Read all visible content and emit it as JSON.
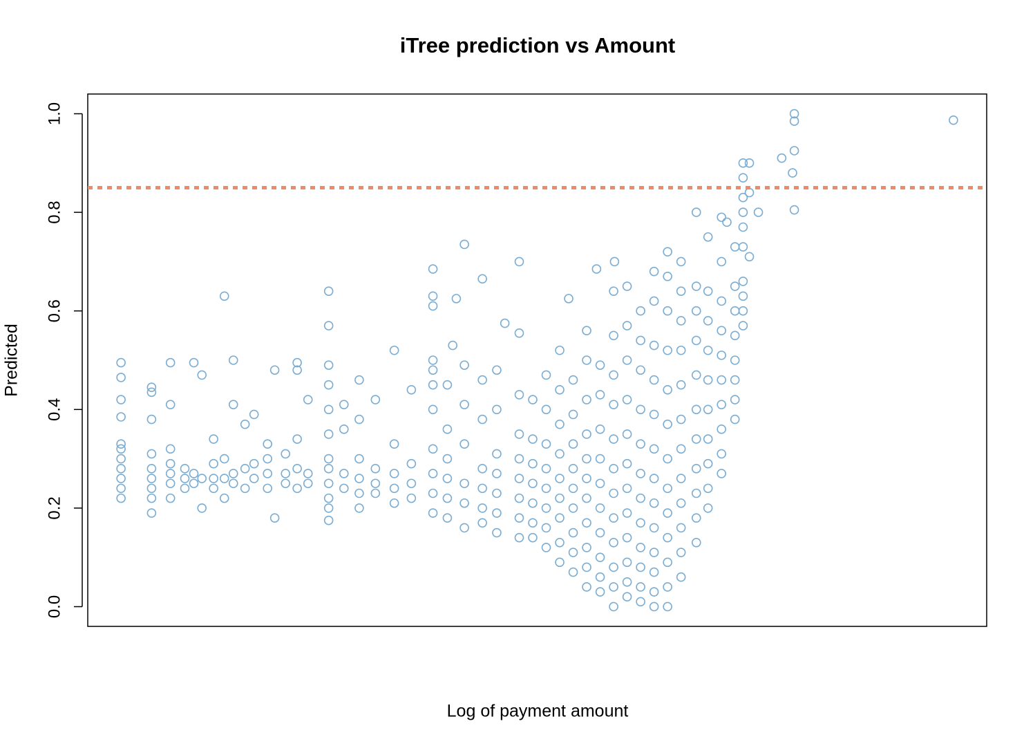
{
  "chart_data": {
    "type": "scatter",
    "title": "iTree prediction vs Amount",
    "x_label": "Log of payment amount",
    "y_label": "Predicted",
    "color": "#7badd3",
    "xlim": [
      0,
      100
    ],
    "ylim": [
      -0.04,
      1.04
    ],
    "yticks": [
      {
        "value": 0,
        "label": "0.0"
      },
      0.2,
      0.4,
      0.6,
      0.8,
      {
        "value": 1,
        "label": "1.0"
      }
    ],
    "reference_line": {
      "y": 0.85,
      "color": "#ef8a62"
    },
    "x": [
      3.7,
      3.7,
      3.7,
      3.7,
      3.7,
      3.7,
      3.7,
      3.7,
      3.7,
      3.7,
      3.7,
      7.1,
      7.1,
      7.1,
      7.1,
      7.1,
      7.1,
      7.1,
      7.1,
      7.1,
      9.2,
      9.2,
      9.2,
      9.2,
      9.2,
      9.2,
      9.2,
      10.8,
      10.8,
      10.8,
      11.8,
      11.8,
      11.8,
      12.7,
      12.7,
      12.7,
      14,
      14,
      14,
      14,
      15.2,
      15.2,
      15.2,
      15.2,
      16.2,
      16.2,
      16.2,
      16.2,
      17.5,
      17.5,
      17.5,
      18.5,
      18.5,
      18.5,
      20,
      20,
      20,
      20,
      20.8,
      20.8,
      22,
      22,
      22,
      23.3,
      23.3,
      23.3,
      23.3,
      23.3,
      24.5,
      24.5,
      24.5,
      26.8,
      26.8,
      26.8,
      26.8,
      26.8,
      26.8,
      26.8,
      26.8,
      26.8,
      26.8,
      26.8,
      26.8,
      28.5,
      28.5,
      28.5,
      28.5,
      30.2,
      30.2,
      30.2,
      30.2,
      30.2,
      30.2,
      32,
      32,
      32,
      32,
      34.1,
      34.1,
      34.1,
      34.1,
      34.1,
      36,
      36,
      36,
      36,
      38.4,
      38.4,
      38.4,
      38.4,
      38.4,
      38.4,
      38.4,
      38.4,
      38.4,
      38.4,
      38.4,
      40,
      40,
      40,
      40,
      40,
      40,
      40.6,
      41,
      41.9,
      41.9,
      41.9,
      41.9,
      41.9,
      41.9,
      41.9,
      43.9,
      43.9,
      43.9,
      43.9,
      43.9,
      43.9,
      43.9,
      45.5,
      45.5,
      45.5,
      45.5,
      45.5,
      45.5,
      45.5,
      46.4,
      48,
      48,
      48,
      48,
      48,
      48,
      48,
      48,
      48,
      49.5,
      49.5,
      49.5,
      49.5,
      49.5,
      49.5,
      49.5,
      51,
      51,
      51,
      51,
      51,
      51,
      51,
      51,
      52.5,
      52.5,
      52.5,
      52.5,
      52.5,
      52.5,
      52.5,
      52.5,
      52.5,
      53.5,
      54,
      54,
      54,
      54,
      54,
      54,
      54,
      54,
      54,
      55.5,
      55.5,
      55.5,
      55.5,
      55.5,
      55.5,
      55.5,
      55.5,
      55.5,
      55.5,
      55.5,
      56.6,
      57,
      57,
      57,
      57,
      57,
      57,
      57,
      57,
      57,
      57,
      58.5,
      58.5,
      58.5,
      58.5,
      58.5,
      58.5,
      58.5,
      58.5,
      58.5,
      58.5,
      58.5,
      58.5,
      58.6,
      60,
      60,
      60,
      60,
      60,
      60,
      60,
      60,
      60,
      60,
      60,
      60,
      61.5,
      61.5,
      61.5,
      61.5,
      61.5,
      61.5,
      61.5,
      61.5,
      61.5,
      61.5,
      61.5,
      61.5,
      63,
      63,
      63,
      63,
      63,
      63,
      63,
      63,
      63,
      63,
      63,
      63,
      63,
      64.5,
      64.5,
      64.5,
      64.5,
      64.5,
      64.5,
      64.5,
      64.5,
      64.5,
      64.5,
      64.5,
      64.5,
      64.5,
      66,
      66,
      66,
      66,
      66,
      66,
      66,
      66,
      66,
      66,
      66,
      66,
      67.7,
      67.7,
      67.7,
      67.7,
      67.7,
      67.7,
      67.7,
      67.7,
      67.7,
      67.7,
      67.7,
      69,
      69,
      69,
      69,
      69,
      69,
      69,
      69,
      69,
      69,
      70.5,
      70.5,
      70.5,
      70.5,
      70.5,
      70.5,
      70.5,
      70.5,
      70.5,
      70.5,
      71.1,
      72,
      72,
      72,
      72,
      72,
      72,
      72,
      72,
      72.9,
      72.9,
      72.9,
      72.9,
      72.9,
      72.9,
      72.9,
      72.9,
      72.9,
      72.9,
      73.6,
      73.6,
      73.6,
      74.6,
      77.2,
      78.4,
      78.6,
      78.6,
      78.6,
      78.6,
      96.3
    ],
    "values": [
      0.22,
      0.24,
      0.26,
      0.28,
      0.3,
      0.32,
      0.33,
      0.385,
      0.42,
      0.465,
      0.495,
      0.19,
      0.22,
      0.24,
      0.26,
      0.28,
      0.31,
      0.38,
      0.435,
      0.445,
      0.22,
      0.25,
      0.27,
      0.29,
      0.32,
      0.41,
      0.495,
      0.24,
      0.26,
      0.28,
      0.25,
      0.27,
      0.495,
      0.2,
      0.26,
      0.47,
      0.24,
      0.26,
      0.29,
      0.34,
      0.22,
      0.26,
      0.3,
      0.63,
      0.25,
      0.27,
      0.5,
      0.41,
      0.24,
      0.28,
      0.37,
      0.26,
      0.29,
      0.39,
      0.24,
      0.27,
      0.3,
      0.33,
      0.18,
      0.48,
      0.25,
      0.27,
      0.31,
      0.24,
      0.28,
      0.34,
      0.48,
      0.495,
      0.25,
      0.27,
      0.42,
      0.175,
      0.2,
      0.22,
      0.25,
      0.28,
      0.3,
      0.35,
      0.4,
      0.45,
      0.49,
      0.57,
      0.64,
      0.24,
      0.27,
      0.36,
      0.41,
      0.2,
      0.23,
      0.26,
      0.3,
      0.38,
      0.46,
      0.23,
      0.25,
      0.28,
      0.42,
      0.21,
      0.24,
      0.27,
      0.33,
      0.52,
      0.22,
      0.25,
      0.29,
      0.44,
      0.19,
      0.23,
      0.27,
      0.32,
      0.4,
      0.45,
      0.48,
      0.5,
      0.61,
      0.63,
      0.685,
      0.18,
      0.22,
      0.26,
      0.3,
      0.36,
      0.45,
      0.53,
      0.625,
      0.16,
      0.21,
      0.25,
      0.33,
      0.41,
      0.49,
      0.735,
      0.17,
      0.2,
      0.24,
      0.28,
      0.38,
      0.46,
      0.665,
      0.15,
      0.19,
      0.23,
      0.27,
      0.31,
      0.4,
      0.48,
      0.575,
      0.14,
      0.18,
      0.22,
      0.26,
      0.3,
      0.35,
      0.43,
      0.555,
      0.7,
      0.14,
      0.17,
      0.21,
      0.25,
      0.29,
      0.34,
      0.42,
      0.12,
      0.16,
      0.2,
      0.24,
      0.28,
      0.33,
      0.4,
      0.47,
      0.09,
      0.13,
      0.18,
      0.22,
      0.26,
      0.31,
      0.37,
      0.44,
      0.52,
      0.625,
      0.07,
      0.11,
      0.15,
      0.2,
      0.24,
      0.28,
      0.33,
      0.39,
      0.46,
      0.04,
      0.08,
      0.12,
      0.17,
      0.22,
      0.26,
      0.3,
      0.35,
      0.42,
      0.5,
      0.56,
      0.685,
      0.03,
      0.06,
      0.1,
      0.15,
      0.2,
      0.25,
      0.3,
      0.36,
      0.43,
      0.49,
      0.0,
      0.04,
      0.08,
      0.13,
      0.18,
      0.23,
      0.28,
      0.34,
      0.41,
      0.47,
      0.55,
      0.64,
      0.7,
      0.02,
      0.05,
      0.09,
      0.14,
      0.19,
      0.24,
      0.29,
      0.35,
      0.42,
      0.5,
      0.57,
      0.65,
      0.01,
      0.04,
      0.08,
      0.12,
      0.17,
      0.22,
      0.27,
      0.33,
      0.4,
      0.48,
      0.54,
      0.6,
      0.0,
      0.03,
      0.07,
      0.11,
      0.16,
      0.21,
      0.26,
      0.32,
      0.39,
      0.46,
      0.53,
      0.62,
      0.68,
      0.0,
      0.04,
      0.09,
      0.14,
      0.19,
      0.24,
      0.3,
      0.37,
      0.44,
      0.52,
      0.6,
      0.67,
      0.72,
      0.06,
      0.11,
      0.16,
      0.21,
      0.26,
      0.32,
      0.38,
      0.45,
      0.52,
      0.58,
      0.64,
      0.7,
      0.13,
      0.18,
      0.23,
      0.28,
      0.34,
      0.4,
      0.47,
      0.54,
      0.6,
      0.65,
      0.8,
      0.2,
      0.24,
      0.29,
      0.34,
      0.4,
      0.46,
      0.52,
      0.58,
      0.64,
      0.75,
      0.27,
      0.31,
      0.36,
      0.41,
      0.46,
      0.51,
      0.56,
      0.62,
      0.7,
      0.79,
      0.78,
      0.38,
      0.42,
      0.46,
      0.5,
      0.55,
      0.6,
      0.65,
      0.73,
      0.57,
      0.6,
      0.63,
      0.66,
      0.73,
      0.77,
      0.8,
      0.83,
      0.87,
      0.9,
      0.71,
      0.84,
      0.9,
      0.8,
      0.91,
      0.88,
      0.805,
      0.925,
      0.985,
      1.0,
      0.987
    ]
  }
}
